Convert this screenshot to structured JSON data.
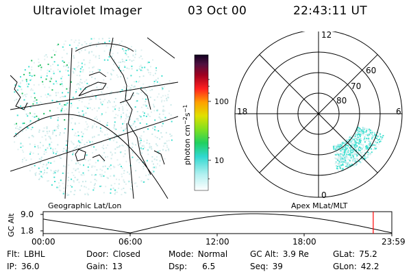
{
  "header": {
    "instrument": "Ultraviolet Imager",
    "date": "03 Oct 00",
    "time": "22:43:11 UT"
  },
  "colors": {
    "background": "#ffffff",
    "map_lines": "#000000",
    "aurora_low": "#dff0f0",
    "aurora_mid": "#40e0d0",
    "aurora_high": "#20c060",
    "time_marker": "#ff0000"
  },
  "colorbar": {
    "title": "photon cm",
    "exp1": "−2",
    "unit_s": "s",
    "exp2": "−1",
    "ticks": [
      "100",
      "10"
    ],
    "scale": "log"
  },
  "geo_panel": {
    "label": "Geographic Lat/Lon"
  },
  "polar_panel": {
    "label": "Apex MLat/MLT",
    "mlt_labels": {
      "top": "12",
      "bottom": "0",
      "left": "18",
      "right": "6"
    },
    "lat_labels": [
      "60",
      "70",
      "80"
    ]
  },
  "altitude_plot": {
    "ylabel": "GC Alt",
    "yticks": [
      "9.0",
      "1.8"
    ],
    "xticks": [
      "00:00",
      "06:00",
      "12:00",
      "18:00",
      "23:59"
    ],
    "current_time_hours": 22.72
  },
  "info": {
    "flt_label": "Flt:",
    "flt_value": "LBHL",
    "ip_label": "IP:",
    "ip_value": "36.0",
    "door_label": "Door:",
    "door_value": "Closed",
    "gain_label": "Gain:",
    "gain_value": "13",
    "mode_label": "Mode:",
    "mode_value": "Normal",
    "dsp_label": "Dsp:",
    "dsp_value": "6.5",
    "gcalt_label": "GC Alt:",
    "gcalt_value": "3.9 Re",
    "seq_label": "Seq:",
    "seq_value": "39",
    "glat_label": "GLat:",
    "glat_value": "75.2",
    "glon_label": "GLon:",
    "glon_value": "42.2"
  }
}
